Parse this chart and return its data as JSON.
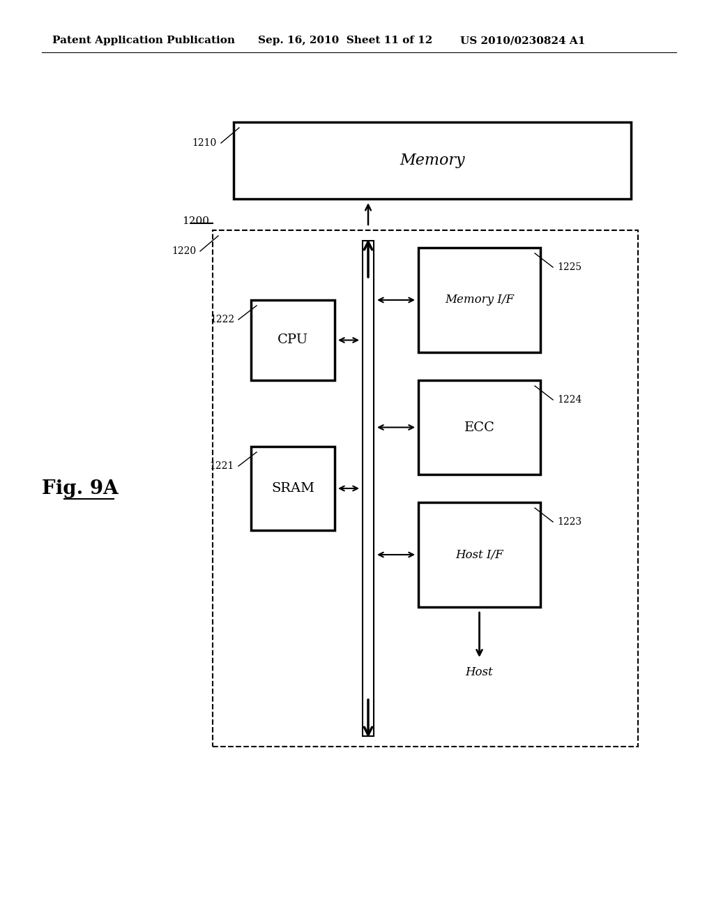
{
  "background_color": "#ffffff",
  "header_left": "Patent Application Publication",
  "header_mid": "Sep. 16, 2010  Sheet 11 of 12",
  "header_right": "US 2010/0230824 A1",
  "fig_label": "Fig. 9A",
  "label_1200": "1200",
  "label_1210": "1210",
  "label_1220": "1220",
  "label_1221": "1221",
  "label_1222": "1222",
  "label_1223": "1223",
  "label_1224": "1224",
  "label_1225": "1225",
  "box_memory_label": "Memory",
  "box_cpu_label": "CPU",
  "box_sram_label": "SRAM",
  "box_mem_if_label": "Memory I/F",
  "box_ecc_label": "ECC",
  "box_host_if_label": "Host I/F",
  "host_label": "Host",
  "font_size_header": 11,
  "font_size_fig": 20,
  "font_size_box_large": 14,
  "font_size_box_small": 12,
  "font_size_label": 10
}
